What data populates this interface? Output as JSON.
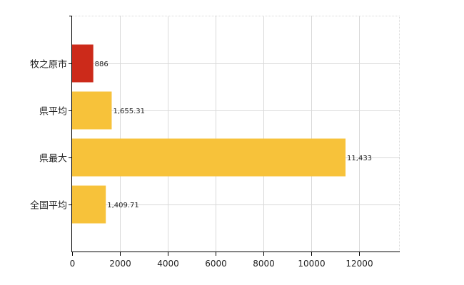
{
  "chart_data": {
    "type": "bar",
    "orientation": "horizontal",
    "categories": [
      "牧之原市",
      "県平均",
      "県最大",
      "全国平均"
    ],
    "values": [
      886,
      1655.31,
      11433,
      1409.71
    ],
    "value_labels": [
      "886",
      "1,655.31",
      "11,433",
      "1,409.71"
    ],
    "bar_colors": [
      "#cc2a1a",
      "#f7c23a",
      "#f7c23a",
      "#f7c23a"
    ],
    "xlim": [
      0,
      13700
    ],
    "xticks": [
      0,
      2000,
      4000,
      6000,
      8000,
      10000,
      12000
    ],
    "xtick_labels": [
      "0",
      "2000",
      "4000",
      "6000",
      "8000",
      "10000",
      "12000"
    ],
    "grid": true,
    "grid_color": "#d9d9d9",
    "title": "",
    "xlabel": "",
    "ylabel": ""
  }
}
